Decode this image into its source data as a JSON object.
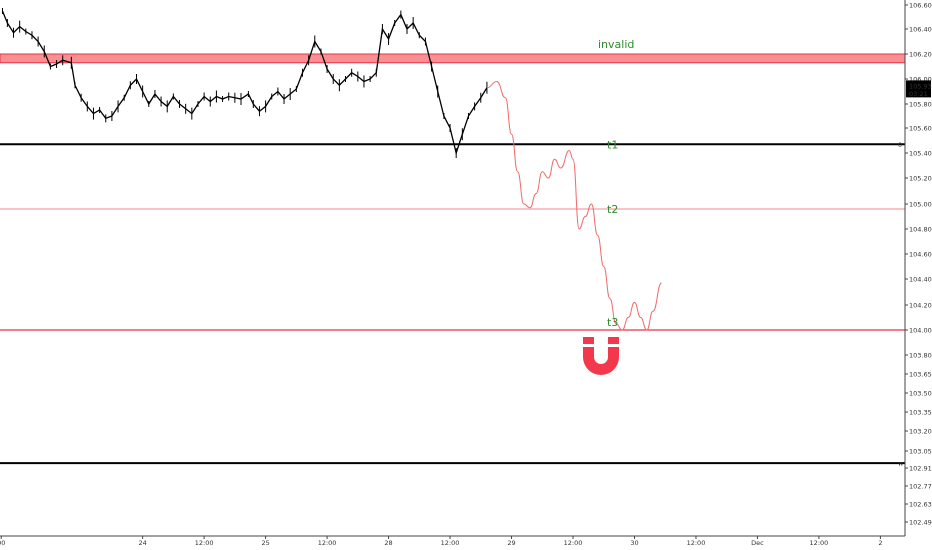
{
  "chart_data": {
    "type": "line",
    "title": "",
    "grid": false,
    "ylim": [
      102.4,
      106.6
    ],
    "x_axis": {
      "ticks": [
        {
          "label": "00",
          "t": -0.15
        },
        {
          "label": "24",
          "t": 1
        },
        {
          "label": "12:00",
          "t": 1.5
        },
        {
          "label": "25",
          "t": 2
        },
        {
          "label": "12:00",
          "t": 2.5
        },
        {
          "label": "28",
          "t": 3
        },
        {
          "label": "12:00",
          "t": 3.5
        },
        {
          "label": "29",
          "t": 4
        },
        {
          "label": "12:00",
          "t": 4.5
        },
        {
          "label": "30",
          "t": 5
        },
        {
          "label": "12:00",
          "t": 5.5
        },
        {
          "label": "Dec",
          "t": 6
        },
        {
          "label": "12:00",
          "t": 6.5
        },
        {
          "label": "2",
          "t": 7
        }
      ],
      "range": [
        -0.16,
        7.2
      ]
    },
    "y_axis": {
      "ticks": [
        "106.600",
        "106.400",
        "106.200",
        "106.000",
        "105.800",
        "105.600",
        "105.400",
        "105.200",
        "105.000",
        "104.800",
        "104.600",
        "104.400",
        "104.200",
        "104.000",
        "103.800",
        "103.650",
        "103.500",
        "103.350",
        "103.200",
        "103.050",
        "102.910",
        "102.770",
        "102.630",
        "102.490"
      ]
    },
    "last_price": {
      "value": "105.933",
      "countdown": "03:21"
    },
    "levels": [
      {
        "name": "invalid",
        "label": "invalid",
        "value": 106.13,
        "value2": 106.2,
        "kind": "zone",
        "color": "#f77c80"
      },
      {
        "name": "t1",
        "label": "t1",
        "value": 105.47,
        "kind": "line",
        "color": "#000000",
        "marker": "0"
      },
      {
        "name": "t2",
        "label": "t2",
        "value": 104.96,
        "kind": "line",
        "color": "#f7a1a5"
      },
      {
        "name": "t3",
        "label": "t3",
        "value": 104.0,
        "kind": "line",
        "color": "#e8334a"
      },
      {
        "name": "bottom",
        "label": "",
        "value": 102.95,
        "kind": "line",
        "color": "#000000",
        "marker": "w"
      }
    ],
    "price_series": {
      "name": "",
      "color": "#000000",
      "points": [
        [
          -0.14,
          106.55
        ],
        [
          -0.1,
          106.45
        ],
        [
          -0.05,
          106.37
        ],
        [
          0,
          106.42
        ],
        [
          0.05,
          106.38
        ],
        [
          0.1,
          106.35
        ],
        [
          0.15,
          106.3
        ],
        [
          0.2,
          106.22
        ],
        [
          0.25,
          106.1
        ],
        [
          0.3,
          106.12
        ],
        [
          0.35,
          106.15
        ],
        [
          0.42,
          106.13
        ],
        [
          0.45,
          105.95
        ],
        [
          0.5,
          105.85
        ],
        [
          0.55,
          105.78
        ],
        [
          0.6,
          105.72
        ],
        [
          0.65,
          105.75
        ],
        [
          0.7,
          105.68
        ],
        [
          0.75,
          105.7
        ],
        [
          0.8,
          105.78
        ],
        [
          0.85,
          105.85
        ],
        [
          0.9,
          105.95
        ],
        [
          0.95,
          106.0
        ],
        [
          1.0,
          105.9
        ],
        [
          1.05,
          105.8
        ],
        [
          1.1,
          105.88
        ],
        [
          1.15,
          105.82
        ],
        [
          1.2,
          105.78
        ],
        [
          1.25,
          105.86
        ],
        [
          1.3,
          105.8
        ],
        [
          1.35,
          105.76
        ],
        [
          1.4,
          105.72
        ],
        [
          1.45,
          105.8
        ],
        [
          1.5,
          105.86
        ],
        [
          1.55,
          105.82
        ],
        [
          1.6,
          105.86
        ],
        [
          1.65,
          105.84
        ],
        [
          1.7,
          105.86
        ],
        [
          1.75,
          105.85
        ],
        [
          1.8,
          105.84
        ],
        [
          1.86,
          105.88
        ],
        [
          1.9,
          105.8
        ],
        [
          1.95,
          105.74
        ],
        [
          2.0,
          105.78
        ],
        [
          2.05,
          105.86
        ],
        [
          2.1,
          105.9
        ],
        [
          2.15,
          105.84
        ],
        [
          2.2,
          105.88
        ],
        [
          2.25,
          105.92
        ],
        [
          2.3,
          106.05
        ],
        [
          2.35,
          106.15
        ],
        [
          2.4,
          106.3
        ],
        [
          2.45,
          106.22
        ],
        [
          2.5,
          106.08
        ],
        [
          2.55,
          106.0
        ],
        [
          2.6,
          105.95
        ],
        [
          2.65,
          106.0
        ],
        [
          2.7,
          106.05
        ],
        [
          2.75,
          106.02
        ],
        [
          2.8,
          105.98
        ],
        [
          2.85,
          106.0
        ],
        [
          2.9,
          106.05
        ],
        [
          2.95,
          106.4
        ],
        [
          3.0,
          106.32
        ],
        [
          3.05,
          106.45
        ],
        [
          3.1,
          106.52
        ],
        [
          3.15,
          106.4
        ],
        [
          3.2,
          106.45
        ],
        [
          3.25,
          106.35
        ],
        [
          3.3,
          106.3
        ],
        [
          3.35,
          106.1
        ],
        [
          3.4,
          105.9
        ],
        [
          3.45,
          105.7
        ],
        [
          3.5,
          105.6
        ],
        [
          3.55,
          105.4
        ],
        [
          3.6,
          105.55
        ],
        [
          3.65,
          105.7
        ],
        [
          3.7,
          105.78
        ],
        [
          3.75,
          105.85
        ],
        [
          3.8,
          105.93
        ]
      ]
    },
    "projection": {
      "name": "",
      "color": "#f06a6a",
      "points": [
        [
          3.8,
          105.93
        ],
        [
          3.88,
          105.98
        ],
        [
          3.95,
          105.85
        ],
        [
          4.0,
          105.55
        ],
        [
          4.05,
          105.25
        ],
        [
          4.1,
          105.0
        ],
        [
          4.15,
          104.97
        ],
        [
          4.2,
          105.08
        ],
        [
          4.25,
          105.25
        ],
        [
          4.3,
          105.2
        ],
        [
          4.35,
          105.35
        ],
        [
          4.4,
          105.28
        ],
        [
          4.47,
          105.42
        ],
        [
          4.5,
          105.35
        ],
        [
          4.55,
          104.8
        ],
        [
          4.6,
          104.9
        ],
        [
          4.65,
          105.0
        ],
        [
          4.7,
          104.75
        ],
        [
          4.75,
          104.5
        ],
        [
          4.8,
          104.25
        ],
        [
          4.85,
          104.05
        ],
        [
          4.9,
          104.0
        ],
        [
          4.95,
          104.1
        ],
        [
          5.0,
          104.22
        ],
        [
          5.05,
          104.1
        ],
        [
          5.1,
          104.0
        ],
        [
          5.15,
          104.15
        ],
        [
          5.22,
          104.37
        ]
      ]
    },
    "annotation_icon": "magnet-icon",
    "colors": {
      "accent": "#f2384a",
      "text": "#2e8b2e",
      "axis": "#333333"
    }
  }
}
